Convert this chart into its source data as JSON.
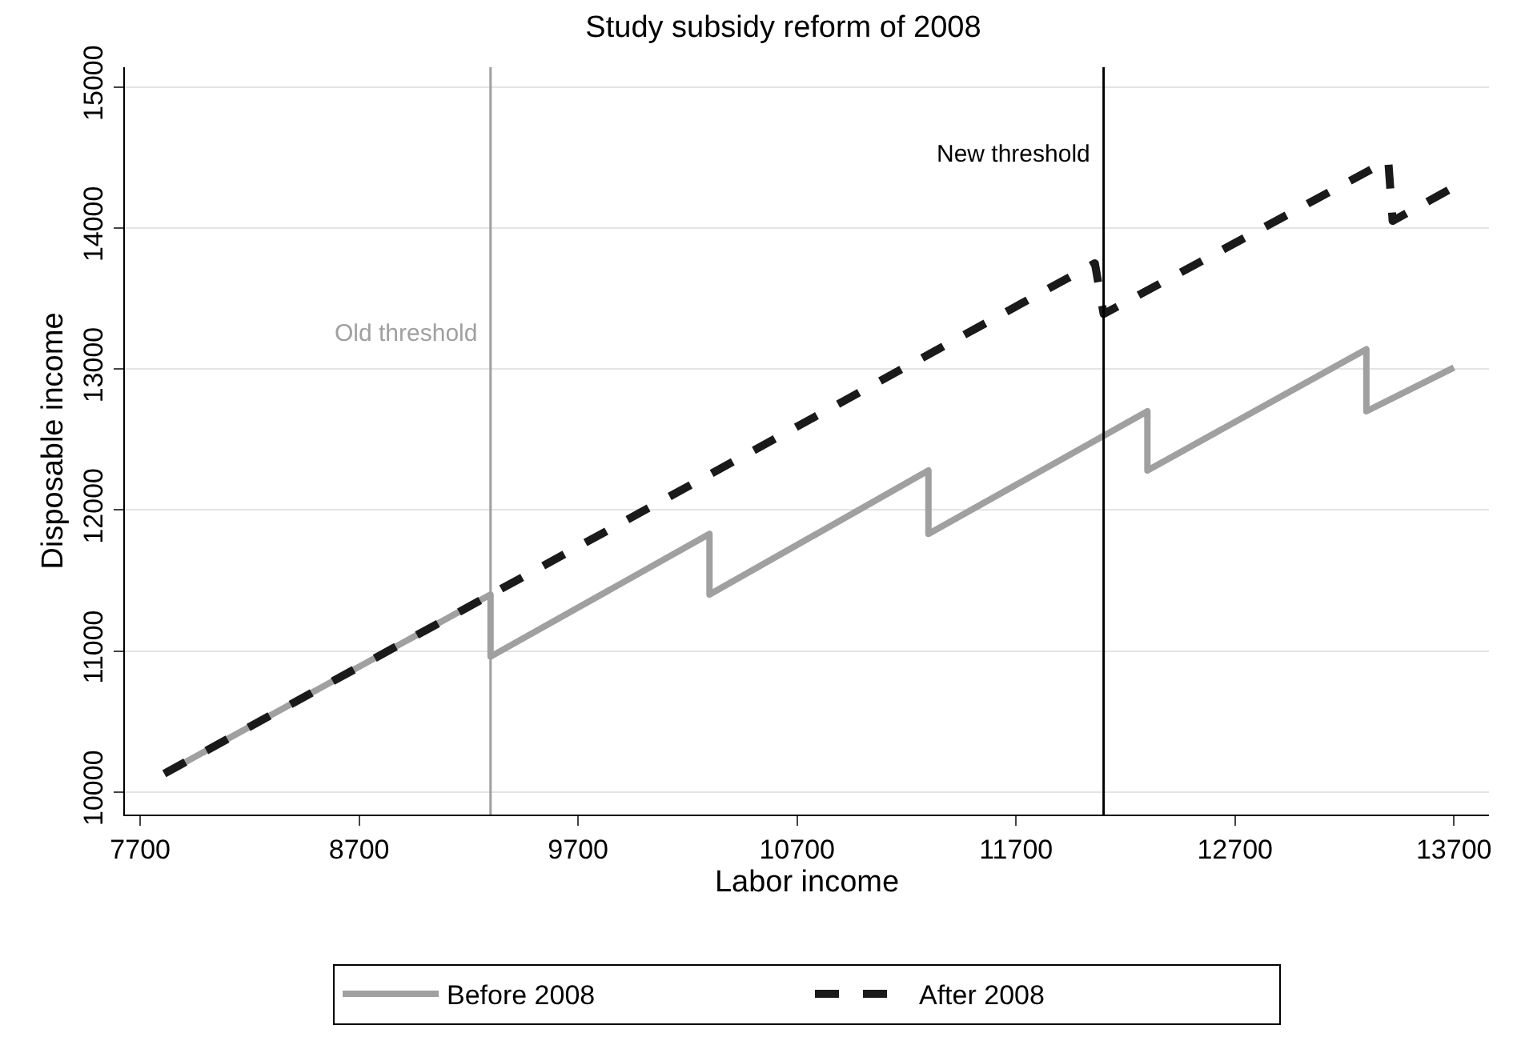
{
  "chart_data": {
    "type": "line",
    "title": "Study subsidy reform of 2008",
    "xlabel": "Labor income",
    "ylabel": "Disposable income",
    "xlim": [
      7630,
      13860
    ],
    "xticks": [
      7700,
      8700,
      9700,
      10700,
      11700,
      12700,
      13700
    ],
    "ylim": [
      9840,
      15140
    ],
    "yticks": [
      10000,
      11000,
      12000,
      13000,
      14000,
      15000
    ],
    "grid": "y",
    "legend": "bottom",
    "marker": "none",
    "series": [
      {
        "name": "Before 2008",
        "color": "#a0a0a0",
        "line_style": "solid",
        "x": [
          7810,
          9300,
          9300,
          10300,
          10300,
          11300,
          11300,
          12300,
          12300,
          13300,
          13300,
          13700
        ],
        "values": [
          10130,
          11400,
          10960,
          11830,
          11400,
          12280,
          11830,
          12700,
          12280,
          13140,
          12700,
          13010
        ]
      },
      {
        "name": "After 2008",
        "color": "#1a1a1a",
        "line_style": "dashed",
        "x": [
          7810,
          12060,
          12100,
          13400,
          13420,
          13700
        ],
        "values": [
          10130,
          13750,
          13390,
          14480,
          14050,
          14290
        ]
      }
    ],
    "ref_lines": [
      {
        "axis": "x",
        "value": 9300,
        "label": "Old threshold",
        "color": "#a0a0a0"
      },
      {
        "axis": "x",
        "value": 12100,
        "label": "New threshold",
        "color": "#000000"
      }
    ]
  }
}
